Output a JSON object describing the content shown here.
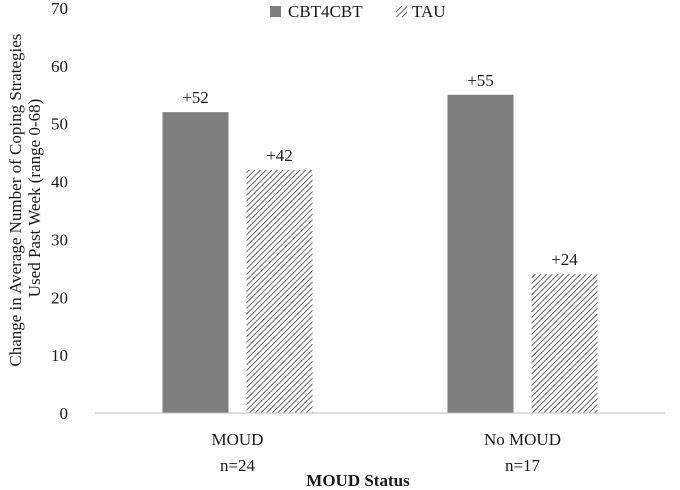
{
  "chart_data": {
    "type": "bar",
    "categories": [
      "MOUD",
      "No MOUD"
    ],
    "category_sublabels": [
      "n=24",
      "n=17"
    ],
    "series": [
      {
        "name": "CBT4CBT",
        "values": [
          52,
          55
        ],
        "labels": [
          "+52",
          "+55"
        ],
        "fill": "solid",
        "color": "#7f7f7f"
      },
      {
        "name": "TAU",
        "values": [
          42,
          24
        ],
        "labels": [
          "+42",
          "+24"
        ],
        "fill": "hatched",
        "color": "#404040"
      }
    ],
    "xlabel": "MOUD Status",
    "ylabel_lines": [
      "Change in Average Number of Coping Strategies",
      "Used Past Week (range 0-68)"
    ],
    "ylim": [
      0,
      70
    ],
    "yticks": [
      0,
      10,
      20,
      30,
      40,
      50,
      60,
      70
    ],
    "grid": false,
    "legend_position": "top-center"
  }
}
